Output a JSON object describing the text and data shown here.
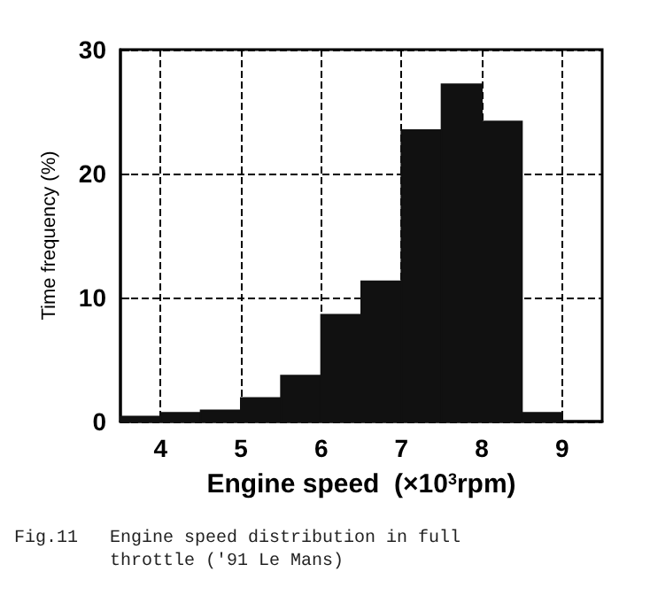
{
  "chart_data": {
    "type": "histogram",
    "xlabel": "Engine speed  (×10$^{3}$rpm)",
    "ylabel": "Time frequency (%)",
    "bins": [
      3.5,
      4,
      4.5,
      5,
      5.5,
      6,
      6.5,
      7,
      7.5,
      8,
      8.5,
      9
    ],
    "values": [
      0.4,
      0.7,
      0.9,
      1.9,
      3.7,
      8.6,
      11.3,
      23.5,
      27.2,
      24.2,
      0.7
    ],
    "color": "#111111",
    "xlim": [
      3.5,
      9.5
    ],
    "xticks": [
      4,
      5,
      6,
      7,
      8,
      9
    ],
    "ylim": [
      0,
      30
    ],
    "yticks": [
      0,
      10,
      20,
      30
    ],
    "grid": true,
    "annotations": [
      "Fig.11   Engine speed distribution in full\n         throttle ('91 Le Mans)"
    ]
  }
}
